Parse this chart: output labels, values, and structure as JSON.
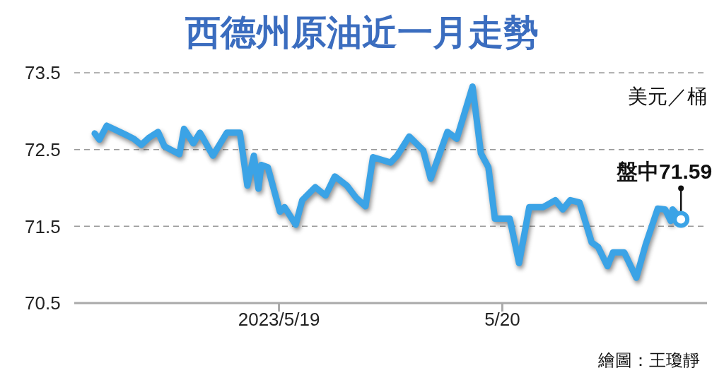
{
  "chart_data": {
    "type": "line",
    "title": "西德州原油近一月走勢",
    "ylabel": "美元／桶",
    "x": [
      "2023-05-18T04:12",
      "2023-05-18T04:42",
      "2023-05-18T05:30",
      "2023-05-18T07:24",
      "2023-05-18T08:24",
      "2023-05-18T09:12",
      "2023-05-18T10:00",
      "2023-05-18T11:00",
      "2023-05-18T11:42",
      "2023-05-18T13:18",
      "2023-05-18T13:48",
      "2023-05-18T14:48",
      "2023-05-18T15:30",
      "2023-05-18T16:54",
      "2023-05-18T18:24",
      "2023-05-18T19:48",
      "2023-05-18T20:36",
      "2023-05-18T21:18",
      "2023-05-18T21:48",
      "2023-05-18T22:06",
      "2023-05-18T22:48",
      "2023-05-19T00:06",
      "2023-05-19T00:36",
      "2023-05-19T01:48",
      "2023-05-19T02:30",
      "2023-05-19T03:54",
      "2023-05-19T05:00",
      "2023-05-19T06:00",
      "2023-05-19T07:18",
      "2023-05-19T08:18",
      "2023-05-19T09:18",
      "2023-05-19T10:06",
      "2023-05-19T12:00",
      "2023-05-19T12:42",
      "2023-05-19T14:00",
      "2023-05-19T15:30",
      "2023-05-19T16:18",
      "2023-05-19T18:06",
      "2023-05-19T19:06",
      "2023-05-19T20:48",
      "2023-05-19T21:42",
      "2023-05-19T22:30",
      "2023-05-19T23:12",
      "2023-05-20T00:48",
      "2023-05-20T01:48",
      "2023-05-20T02:54",
      "2023-05-20T04:24",
      "2023-05-20T05:42",
      "2023-05-20T06:30",
      "2023-05-20T07:18",
      "2023-05-20T08:18",
      "2023-05-20T09:36",
      "2023-05-20T10:18",
      "2023-05-20T11:18",
      "2023-05-20T11:54",
      "2023-05-20T13:06",
      "2023-05-20T14:24",
      "2023-05-20T15:24",
      "2023-05-20T16:42",
      "2023-05-20T17:30",
      "2023-05-20T18:06",
      "2023-05-20T18:18",
      "2023-05-20T19:12"
    ],
    "series": [
      {
        "color": "#3ba3e6",
        "values": [
          72.71,
          72.63,
          72.81,
          72.7,
          72.64,
          72.56,
          72.65,
          72.73,
          72.54,
          72.44,
          72.77,
          72.58,
          72.72,
          72.42,
          72.72,
          72.72,
          72.03,
          72.42,
          71.99,
          72.3,
          72.27,
          71.69,
          71.75,
          71.52,
          71.84,
          72.01,
          71.9,
          72.15,
          72.03,
          71.87,
          71.76,
          72.4,
          72.33,
          72.42,
          72.67,
          72.49,
          72.12,
          72.73,
          72.64,
          73.32,
          72.45,
          72.27,
          71.6,
          71.6,
          71.02,
          71.75,
          71.75,
          71.84,
          71.72,
          71.84,
          71.81,
          71.29,
          71.23,
          70.98,
          71.16,
          71.16,
          70.83,
          71.26,
          71.73,
          71.72,
          71.57,
          71.72,
          71.59
        ]
      }
    ],
    "xlim": [
      "2023-05-18T02:00",
      "2023-05-20T22:00"
    ],
    "xticks": [
      {
        "value": "2023-05-19",
        "label": "2023/5/19"
      },
      {
        "value": "2023-05-20",
        "label": "5/20"
      }
    ],
    "ylim": [
      70.5,
      73.5
    ],
    "yticks": [
      70.5,
      71.5,
      72.5,
      73.5
    ],
    "grid": "y",
    "line_style": "solid",
    "annotations": [
      {
        "text": "盤中71.59",
        "x": "2023-05-20T19:12",
        "y": 71.59
      },
      "繪圖：王瓊靜"
    ]
  }
}
